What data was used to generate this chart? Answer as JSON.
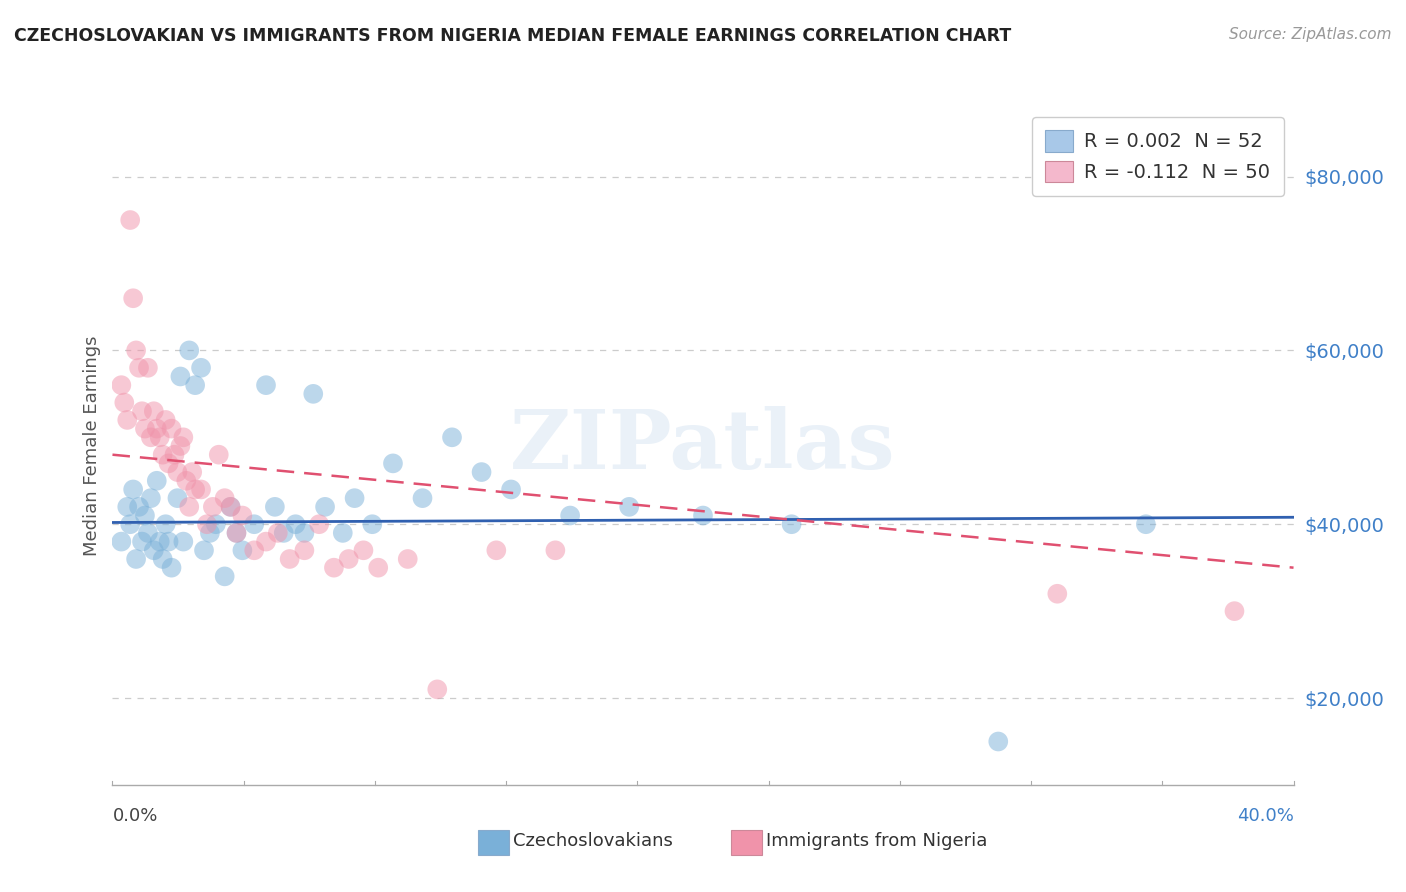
{
  "title": "CZECHOSLOVAKIAN VS IMMIGRANTS FROM NIGERIA MEDIAN FEMALE EARNINGS CORRELATION CHART",
  "source": "Source: ZipAtlas.com",
  "ylabel": "Median Female Earnings",
  "y_ticks": [
    20000,
    40000,
    60000,
    80000
  ],
  "y_tick_labels": [
    "$20,000",
    "$40,000",
    "$60,000",
    "$80,000"
  ],
  "xlim": [
    0.0,
    0.4
  ],
  "ylim": [
    10000,
    88000
  ],
  "legend_entries": [
    {
      "label": "R = 0.002  N = 52",
      "color": "#a8c8e8"
    },
    {
      "label": "R = -0.112  N = 50",
      "color": "#f4b8cc"
    }
  ],
  "color_czech": "#7ab0d8",
  "color_nigeria": "#f093aa",
  "trend_czech_color": "#3060b0",
  "trend_nigeria_color": "#e05070",
  "watermark": "ZIPatlas",
  "czech_scatter": [
    [
      0.003,
      38000
    ],
    [
      0.005,
      42000
    ],
    [
      0.006,
      40000
    ],
    [
      0.007,
      44000
    ],
    [
      0.008,
      36000
    ],
    [
      0.009,
      42000
    ],
    [
      0.01,
      38000
    ],
    [
      0.011,
      41000
    ],
    [
      0.012,
      39000
    ],
    [
      0.013,
      43000
    ],
    [
      0.014,
      37000
    ],
    [
      0.015,
      45000
    ],
    [
      0.016,
      38000
    ],
    [
      0.017,
      36000
    ],
    [
      0.018,
      40000
    ],
    [
      0.019,
      38000
    ],
    [
      0.02,
      35000
    ],
    [
      0.022,
      43000
    ],
    [
      0.023,
      57000
    ],
    [
      0.024,
      38000
    ],
    [
      0.026,
      60000
    ],
    [
      0.028,
      56000
    ],
    [
      0.03,
      58000
    ],
    [
      0.031,
      37000
    ],
    [
      0.033,
      39000
    ],
    [
      0.035,
      40000
    ],
    [
      0.038,
      34000
    ],
    [
      0.04,
      42000
    ],
    [
      0.042,
      39000
    ],
    [
      0.044,
      37000
    ],
    [
      0.048,
      40000
    ],
    [
      0.052,
      56000
    ],
    [
      0.055,
      42000
    ],
    [
      0.058,
      39000
    ],
    [
      0.062,
      40000
    ],
    [
      0.065,
      39000
    ],
    [
      0.068,
      55000
    ],
    [
      0.072,
      42000
    ],
    [
      0.078,
      39000
    ],
    [
      0.082,
      43000
    ],
    [
      0.088,
      40000
    ],
    [
      0.095,
      47000
    ],
    [
      0.105,
      43000
    ],
    [
      0.115,
      50000
    ],
    [
      0.125,
      46000
    ],
    [
      0.135,
      44000
    ],
    [
      0.155,
      41000
    ],
    [
      0.175,
      42000
    ],
    [
      0.2,
      41000
    ],
    [
      0.23,
      40000
    ],
    [
      0.3,
      15000
    ],
    [
      0.35,
      40000
    ]
  ],
  "nigeria_scatter": [
    [
      0.003,
      56000
    ],
    [
      0.004,
      54000
    ],
    [
      0.005,
      52000
    ],
    [
      0.006,
      75000
    ],
    [
      0.007,
      66000
    ],
    [
      0.008,
      60000
    ],
    [
      0.009,
      58000
    ],
    [
      0.01,
      53000
    ],
    [
      0.011,
      51000
    ],
    [
      0.012,
      58000
    ],
    [
      0.013,
      50000
    ],
    [
      0.014,
      53000
    ],
    [
      0.015,
      51000
    ],
    [
      0.016,
      50000
    ],
    [
      0.017,
      48000
    ],
    [
      0.018,
      52000
    ],
    [
      0.019,
      47000
    ],
    [
      0.02,
      51000
    ],
    [
      0.021,
      48000
    ],
    [
      0.022,
      46000
    ],
    [
      0.023,
      49000
    ],
    [
      0.024,
      50000
    ],
    [
      0.025,
      45000
    ],
    [
      0.026,
      42000
    ],
    [
      0.027,
      46000
    ],
    [
      0.028,
      44000
    ],
    [
      0.03,
      44000
    ],
    [
      0.032,
      40000
    ],
    [
      0.034,
      42000
    ],
    [
      0.036,
      48000
    ],
    [
      0.038,
      43000
    ],
    [
      0.04,
      42000
    ],
    [
      0.042,
      39000
    ],
    [
      0.044,
      41000
    ],
    [
      0.048,
      37000
    ],
    [
      0.052,
      38000
    ],
    [
      0.056,
      39000
    ],
    [
      0.06,
      36000
    ],
    [
      0.065,
      37000
    ],
    [
      0.07,
      40000
    ],
    [
      0.075,
      35000
    ],
    [
      0.08,
      36000
    ],
    [
      0.085,
      37000
    ],
    [
      0.09,
      35000
    ],
    [
      0.1,
      36000
    ],
    [
      0.11,
      21000
    ],
    [
      0.13,
      37000
    ],
    [
      0.15,
      37000
    ],
    [
      0.32,
      32000
    ],
    [
      0.38,
      30000
    ]
  ],
  "czech_trend": [
    0.0,
    0.4,
    40200,
    40800
  ],
  "nigeria_trend": [
    0.0,
    0.4,
    48000,
    35000
  ]
}
